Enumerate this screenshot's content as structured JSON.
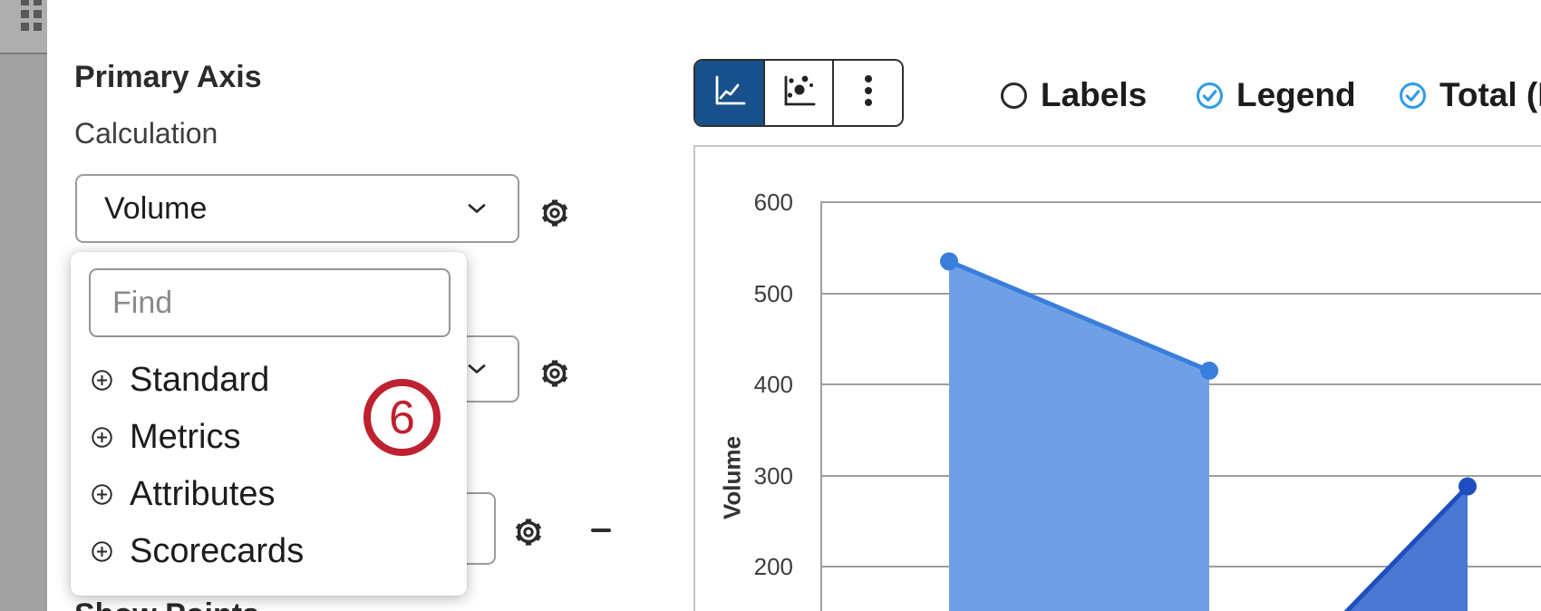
{
  "sidebar": {
    "grid_icon": "grid-dots"
  },
  "panel": {
    "title": "Primary Axis",
    "calculation_label": "Calculation",
    "calculation_value": "Volume",
    "find_placeholder": "Find",
    "categories": [
      {
        "label": "Standard"
      },
      {
        "label": "Metrics"
      },
      {
        "label": "Attributes"
      },
      {
        "label": "Scorecards"
      }
    ],
    "annotation_badge": "6",
    "show_points_label": "Show Points"
  },
  "toolbar": {
    "buttons": [
      {
        "icon": "line-chart",
        "selected": true
      },
      {
        "icon": "scatter-chart",
        "selected": false
      },
      {
        "icon": "kebab-menu",
        "selected": false
      }
    ]
  },
  "toggles": [
    {
      "label": "Labels",
      "checked": false
    },
    {
      "label": "Legend",
      "checked": true
    },
    {
      "label": "Total (N",
      "checked": true
    }
  ],
  "colors": {
    "toolbar_selected_blue": "#17508a",
    "toggle_check_blue": "#2f9be8",
    "annotation_red": "#be2130",
    "series1_fill": "#6fa0e6",
    "series1_line": "#3a7edc",
    "series2_fill": "#4c77d2",
    "series2_line": "#1f4fbe"
  },
  "chart_data": {
    "type": "area",
    "title": "",
    "xlabel": "",
    "ylabel": "Volume",
    "yticks": [
      600,
      500,
      400,
      300,
      200
    ],
    "ylim_visible": [
      200,
      600
    ],
    "grid": true,
    "legend_position": "none-visible",
    "series": [
      {
        "name": "series-1",
        "fill": "#6fa0e6",
        "line": "#3a7edc",
        "points": [
          {
            "x": 142,
            "value": 535
          },
          {
            "x": 429,
            "value": 415
          }
        ]
      },
      {
        "name": "series-2",
        "fill": "#4c77d2",
        "line": "#1f4fbe",
        "entry_x": 554,
        "points": [
          {
            "x": 714,
            "value": 288
          }
        ]
      }
    ]
  }
}
